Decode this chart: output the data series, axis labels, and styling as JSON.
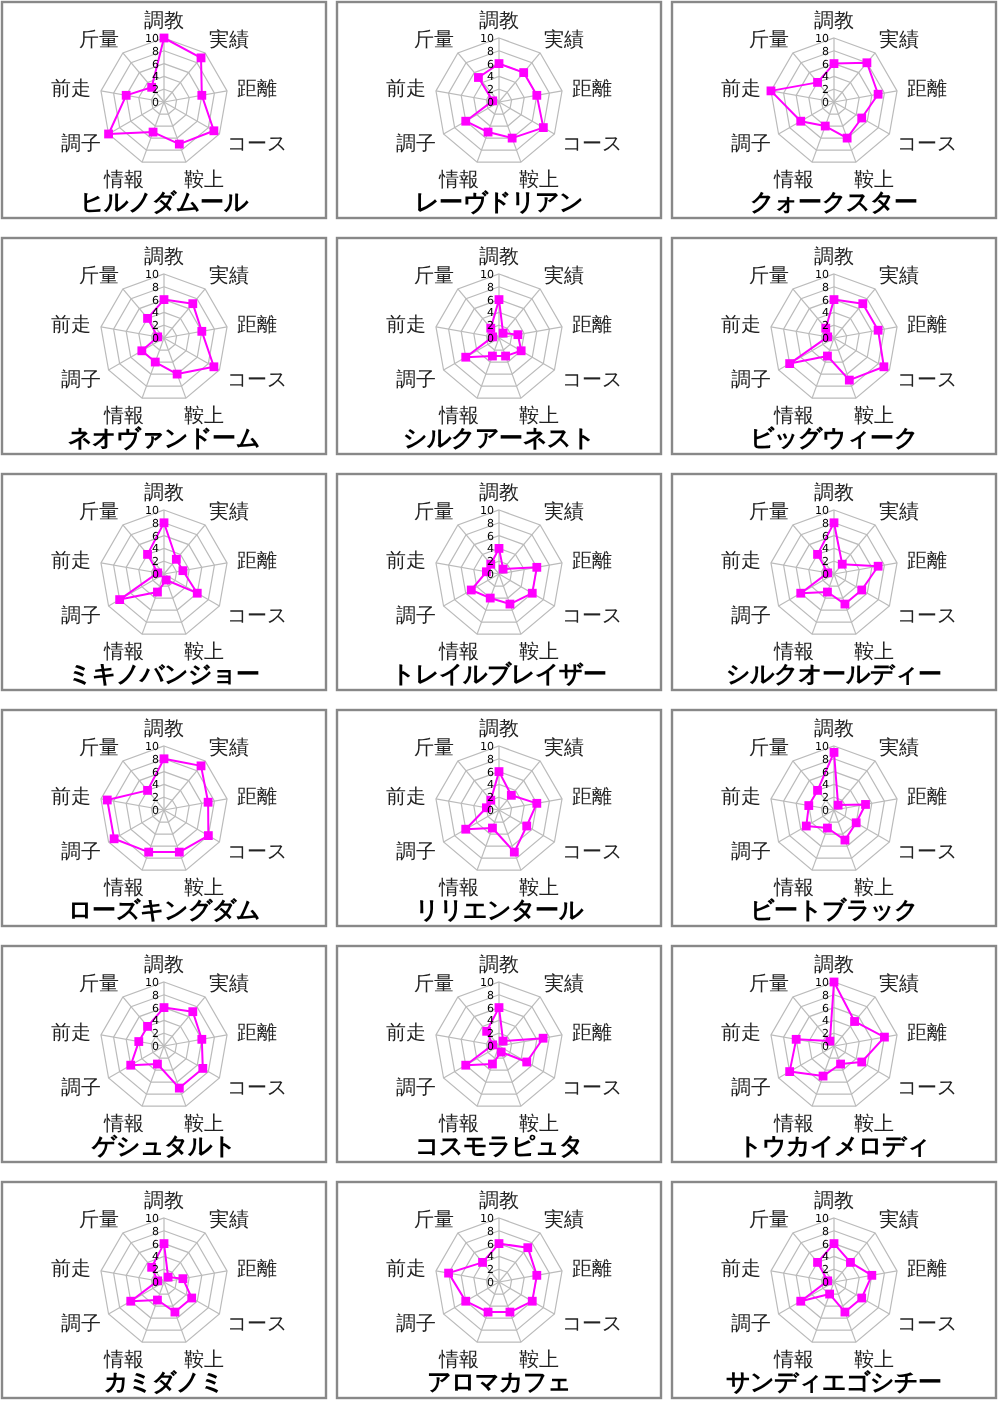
{
  "chart_data": [
    {
      "type": "radar",
      "title": "ヒルノダムール",
      "categories": [
        "調教",
        "実績",
        "距離",
        "コース",
        "鞍上",
        "情報",
        "調子",
        "前走",
        "斤量"
      ],
      "series": [
        {
          "color": "#ff00ff",
          "values": [
            10,
            9,
            6,
            9,
            7,
            5,
            10,
            6,
            3
          ]
        }
      ],
      "ylim": [
        0,
        10
      ],
      "yticks": [
        0,
        2,
        4,
        6,
        8,
        10
      ],
      "marker": "square",
      "grid": true
    },
    {
      "type": "radar",
      "title": "レーヴドリアン",
      "categories": [
        "調教",
        "実績",
        "距離",
        "コース",
        "鞍上",
        "情報",
        "調子",
        "前走",
        "斤量"
      ],
      "series": [
        {
          "color": "#ff00ff",
          "values": [
            6,
            6,
            6,
            8,
            6,
            5,
            6,
            1,
            5
          ]
        }
      ],
      "ylim": [
        0,
        10
      ],
      "yticks": [
        0,
        2,
        4,
        6,
        8,
        10
      ],
      "marker": "square",
      "grid": true
    },
    {
      "type": "radar",
      "title": "クォークスター",
      "categories": [
        "調教",
        "実績",
        "距離",
        "コース",
        "鞍上",
        "情報",
        "調子",
        "前走",
        "斤量"
      ],
      "series": [
        {
          "color": "#ff00ff",
          "values": [
            6,
            8,
            7,
            5,
            6,
            4,
            6,
            10,
            4
          ]
        }
      ],
      "ylim": [
        0,
        10
      ],
      "yticks": [
        0,
        2,
        4,
        6,
        8,
        10
      ],
      "marker": "square",
      "grid": true
    },
    {
      "type": "radar",
      "title": "ネオヴァンドーム",
      "categories": [
        "調教",
        "実績",
        "距離",
        "コース",
        "鞍上",
        "情報",
        "調子",
        "前走",
        "斤量"
      ],
      "series": [
        {
          "color": "#ff00ff",
          "values": [
            6,
            7,
            6,
            9,
            6,
            4,
            4,
            1,
            4
          ]
        }
      ],
      "ylim": [
        0,
        10
      ],
      "yticks": [
        0,
        2,
        4,
        6,
        8,
        10
      ],
      "marker": "square",
      "grid": true
    },
    {
      "type": "radar",
      "title": "シルクアーネスト",
      "categories": [
        "調教",
        "実績",
        "距離",
        "コース",
        "鞍上",
        "情報",
        "調子",
        "前走",
        "斤量"
      ],
      "series": [
        {
          "color": "#ff00ff",
          "values": [
            6,
            1,
            3,
            4,
            3,
            3,
            6,
            1,
            2
          ]
        }
      ],
      "ylim": [
        0,
        10
      ],
      "yticks": [
        0,
        2,
        4,
        6,
        8,
        10
      ],
      "marker": "square",
      "grid": true
    },
    {
      "type": "radar",
      "title": "ビッグウィーク",
      "categories": [
        "調教",
        "実績",
        "距離",
        "コース",
        "鞍上",
        "情報",
        "調子",
        "前走",
        "斤量"
      ],
      "series": [
        {
          "color": "#ff00ff",
          "values": [
            6,
            7,
            7,
            9,
            7,
            3,
            8,
            1,
            2
          ]
        }
      ],
      "ylim": [
        0,
        10
      ],
      "yticks": [
        0,
        2,
        4,
        6,
        8,
        10
      ],
      "marker": "square",
      "grid": true
    },
    {
      "type": "radar",
      "title": "ミキノバンジョー",
      "categories": [
        "調教",
        "実績",
        "距離",
        "コース",
        "鞍上",
        "情報",
        "調子",
        "前走",
        "斤量"
      ],
      "series": [
        {
          "color": "#ff00ff",
          "values": [
            8,
            3,
            3,
            6,
            1,
            3,
            8,
            1,
            4
          ]
        }
      ],
      "ylim": [
        0,
        10
      ],
      "yticks": [
        0,
        2,
        4,
        6,
        8,
        10
      ],
      "marker": "square",
      "grid": true
    },
    {
      "type": "radar",
      "title": "トレイルブレイザー",
      "categories": [
        "調教",
        "実績",
        "距離",
        "コース",
        "鞍上",
        "情報",
        "調子",
        "前走",
        "斤量"
      ],
      "series": [
        {
          "color": "#ff00ff",
          "values": [
            4,
            1,
            6,
            6,
            5,
            4,
            5,
            2,
            2
          ]
        }
      ],
      "ylim": [
        0,
        10
      ],
      "yticks": [
        0,
        2,
        4,
        6,
        8,
        10
      ],
      "marker": "square",
      "grid": true
    },
    {
      "type": "radar",
      "title": "シルクオールディー",
      "categories": [
        "調教",
        "実績",
        "距離",
        "コース",
        "鞍上",
        "情報",
        "調子",
        "前走",
        "斤量"
      ],
      "series": [
        {
          "color": "#ff00ff",
          "values": [
            8,
            2,
            7,
            5,
            5,
            3,
            6,
            1,
            4
          ]
        }
      ],
      "ylim": [
        0,
        10
      ],
      "yticks": [
        0,
        2,
        4,
        6,
        8,
        10
      ],
      "marker": "square",
      "grid": true
    },
    {
      "type": "radar",
      "title": "ローズキングダム",
      "categories": [
        "調教",
        "実績",
        "距離",
        "コース",
        "鞍上",
        "情報",
        "調子",
        "前走",
        "斤量"
      ],
      "series": [
        {
          "color": "#ff00ff",
          "values": [
            8,
            9,
            7,
            8,
            7,
            7,
            9,
            9,
            4
          ]
        }
      ],
      "ylim": [
        0,
        10
      ],
      "yticks": [
        0,
        2,
        4,
        6,
        8,
        10
      ],
      "marker": "square",
      "grid": true
    },
    {
      "type": "radar",
      "title": "リリエンタール",
      "categories": [
        "調教",
        "実績",
        "距離",
        "コース",
        "鞍上",
        "情報",
        "調子",
        "前走",
        "斤量"
      ],
      "series": [
        {
          "color": "#ff00ff",
          "values": [
            6,
            3,
            6,
            5,
            7,
            3,
            6,
            2,
            2
          ]
        }
      ],
      "ylim": [
        0,
        10
      ],
      "yticks": [
        0,
        2,
        4,
        6,
        8,
        10
      ],
      "marker": "square",
      "grid": true
    },
    {
      "type": "radar",
      "title": "ビートブラック",
      "categories": [
        "調教",
        "実績",
        "距離",
        "コース",
        "鞍上",
        "情報",
        "調子",
        "前走",
        "斤量"
      ],
      "series": [
        {
          "color": "#ff00ff",
          "values": [
            9,
            1,
            5,
            4,
            5,
            3,
            5,
            4,
            4
          ]
        }
      ],
      "ylim": [
        0,
        10
      ],
      "yticks": [
        0,
        2,
        4,
        6,
        8,
        10
      ],
      "marker": "square",
      "grid": true
    },
    {
      "type": "radar",
      "title": "ゲシュタルト",
      "categories": [
        "調教",
        "実績",
        "距離",
        "コース",
        "鞍上",
        "情報",
        "調子",
        "前走",
        "斤量"
      ],
      "series": [
        {
          "color": "#ff00ff",
          "values": [
            6,
            7,
            6,
            7,
            7,
            3,
            6,
            4,
            4
          ]
        }
      ],
      "ylim": [
        0,
        10
      ],
      "yticks": [
        0,
        2,
        4,
        6,
        8,
        10
      ],
      "marker": "square",
      "grid": true
    },
    {
      "type": "radar",
      "title": "コスモラピュタ",
      "categories": [
        "調教",
        "実績",
        "距離",
        "コース",
        "鞍上",
        "情報",
        "調子",
        "前走",
        "斤量"
      ],
      "series": [
        {
          "color": "#ff00ff",
          "values": [
            6,
            1,
            7,
            5,
            1,
            3,
            6,
            1,
            3
          ]
        }
      ],
      "ylim": [
        0,
        10
      ],
      "yticks": [
        0,
        2,
        4,
        6,
        8,
        10
      ],
      "marker": "square",
      "grid": true
    },
    {
      "type": "radar",
      "title": "トウカイメロディ",
      "categories": [
        "調教",
        "実績",
        "距離",
        "コース",
        "鞍上",
        "情報",
        "調子",
        "前走",
        "斤量"
      ],
      "series": [
        {
          "color": "#ff00ff",
          "values": [
            10,
            5,
            8,
            5,
            3,
            5,
            8,
            6,
            1
          ]
        }
      ],
      "ylim": [
        0,
        10
      ],
      "yticks": [
        0,
        2,
        4,
        6,
        8,
        10
      ],
      "marker": "square",
      "grid": true
    },
    {
      "type": "radar",
      "title": "カミダノミ",
      "categories": [
        "調教",
        "実績",
        "距離",
        "コース",
        "鞍上",
        "情報",
        "調子",
        "前走",
        "斤量"
      ],
      "series": [
        {
          "color": "#ff00ff",
          "values": [
            6,
            1,
            3,
            5,
            5,
            3,
            6,
            1,
            3
          ]
        }
      ],
      "ylim": [
        0,
        10
      ],
      "yticks": [
        0,
        2,
        4,
        6,
        8,
        10
      ],
      "marker": "square",
      "grid": true
    },
    {
      "type": "radar",
      "title": "アロマカフェ",
      "categories": [
        "調教",
        "実績",
        "距離",
        "コース",
        "鞍上",
        "情報",
        "調子",
        "前走",
        "斤量"
      ],
      "series": [
        {
          "color": "#ff00ff",
          "values": [
            6,
            7,
            6,
            6,
            5,
            5,
            6,
            8,
            4
          ]
        }
      ],
      "ylim": [
        0,
        10
      ],
      "yticks": [
        0,
        2,
        4,
        6,
        8,
        10
      ],
      "marker": "square",
      "grid": true
    },
    {
      "type": "radar",
      "title": "サンディエゴシチー",
      "categories": [
        "調教",
        "実績",
        "距離",
        "コース",
        "鞍上",
        "情報",
        "調子",
        "前走",
        "斤量"
      ],
      "series": [
        {
          "color": "#ff00ff",
          "values": [
            6,
            4,
            6,
            5,
            5,
            2,
            6,
            1,
            4
          ]
        }
      ],
      "ylim": [
        0,
        10
      ],
      "yticks": [
        0,
        2,
        4,
        6,
        8,
        10
      ],
      "marker": "square",
      "grid": true
    }
  ]
}
